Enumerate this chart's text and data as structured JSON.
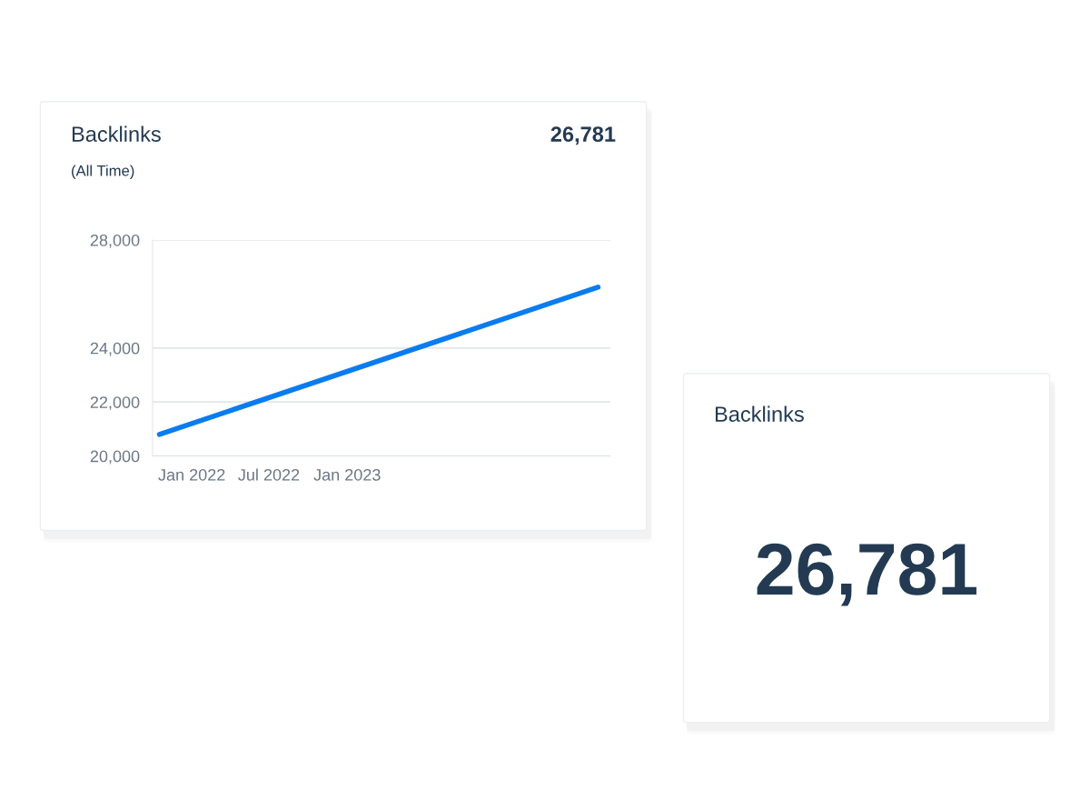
{
  "chart_data": [
    {
      "type": "line",
      "title": "Backlinks",
      "subtitle": "(All Time)",
      "annotations": [
        "26,781"
      ],
      "x": [
        "2021-10-17",
        "2024-08-12"
      ],
      "series": [
        {
          "color": "#0a7cf0",
          "values": [
            20800,
            26250
          ]
        }
      ],
      "xlim": [
        "2021-10-01",
        "2024-09-10"
      ],
      "xticks": [
        {
          "value": "2022-01",
          "label": "Jan 2022"
        },
        {
          "value": "2022-07",
          "label": "Jul 2022"
        },
        {
          "value": "2023-01",
          "label": "Jan 2023"
        }
      ],
      "ylim": [
        20000,
        28000
      ],
      "yticks": [
        {
          "value": 20000,
          "label": "20,000"
        },
        {
          "value": 22000,
          "label": "22,000"
        },
        {
          "value": 24000,
          "label": "24,000"
        },
        {
          "value": 28000,
          "label": "28,000"
        }
      ],
      "grid": "y",
      "legend": false,
      "marker": "none",
      "line_style": "solid"
    },
    {
      "type": "other",
      "title": "Backlinks",
      "annotations": [
        "26,781"
      ]
    }
  ]
}
